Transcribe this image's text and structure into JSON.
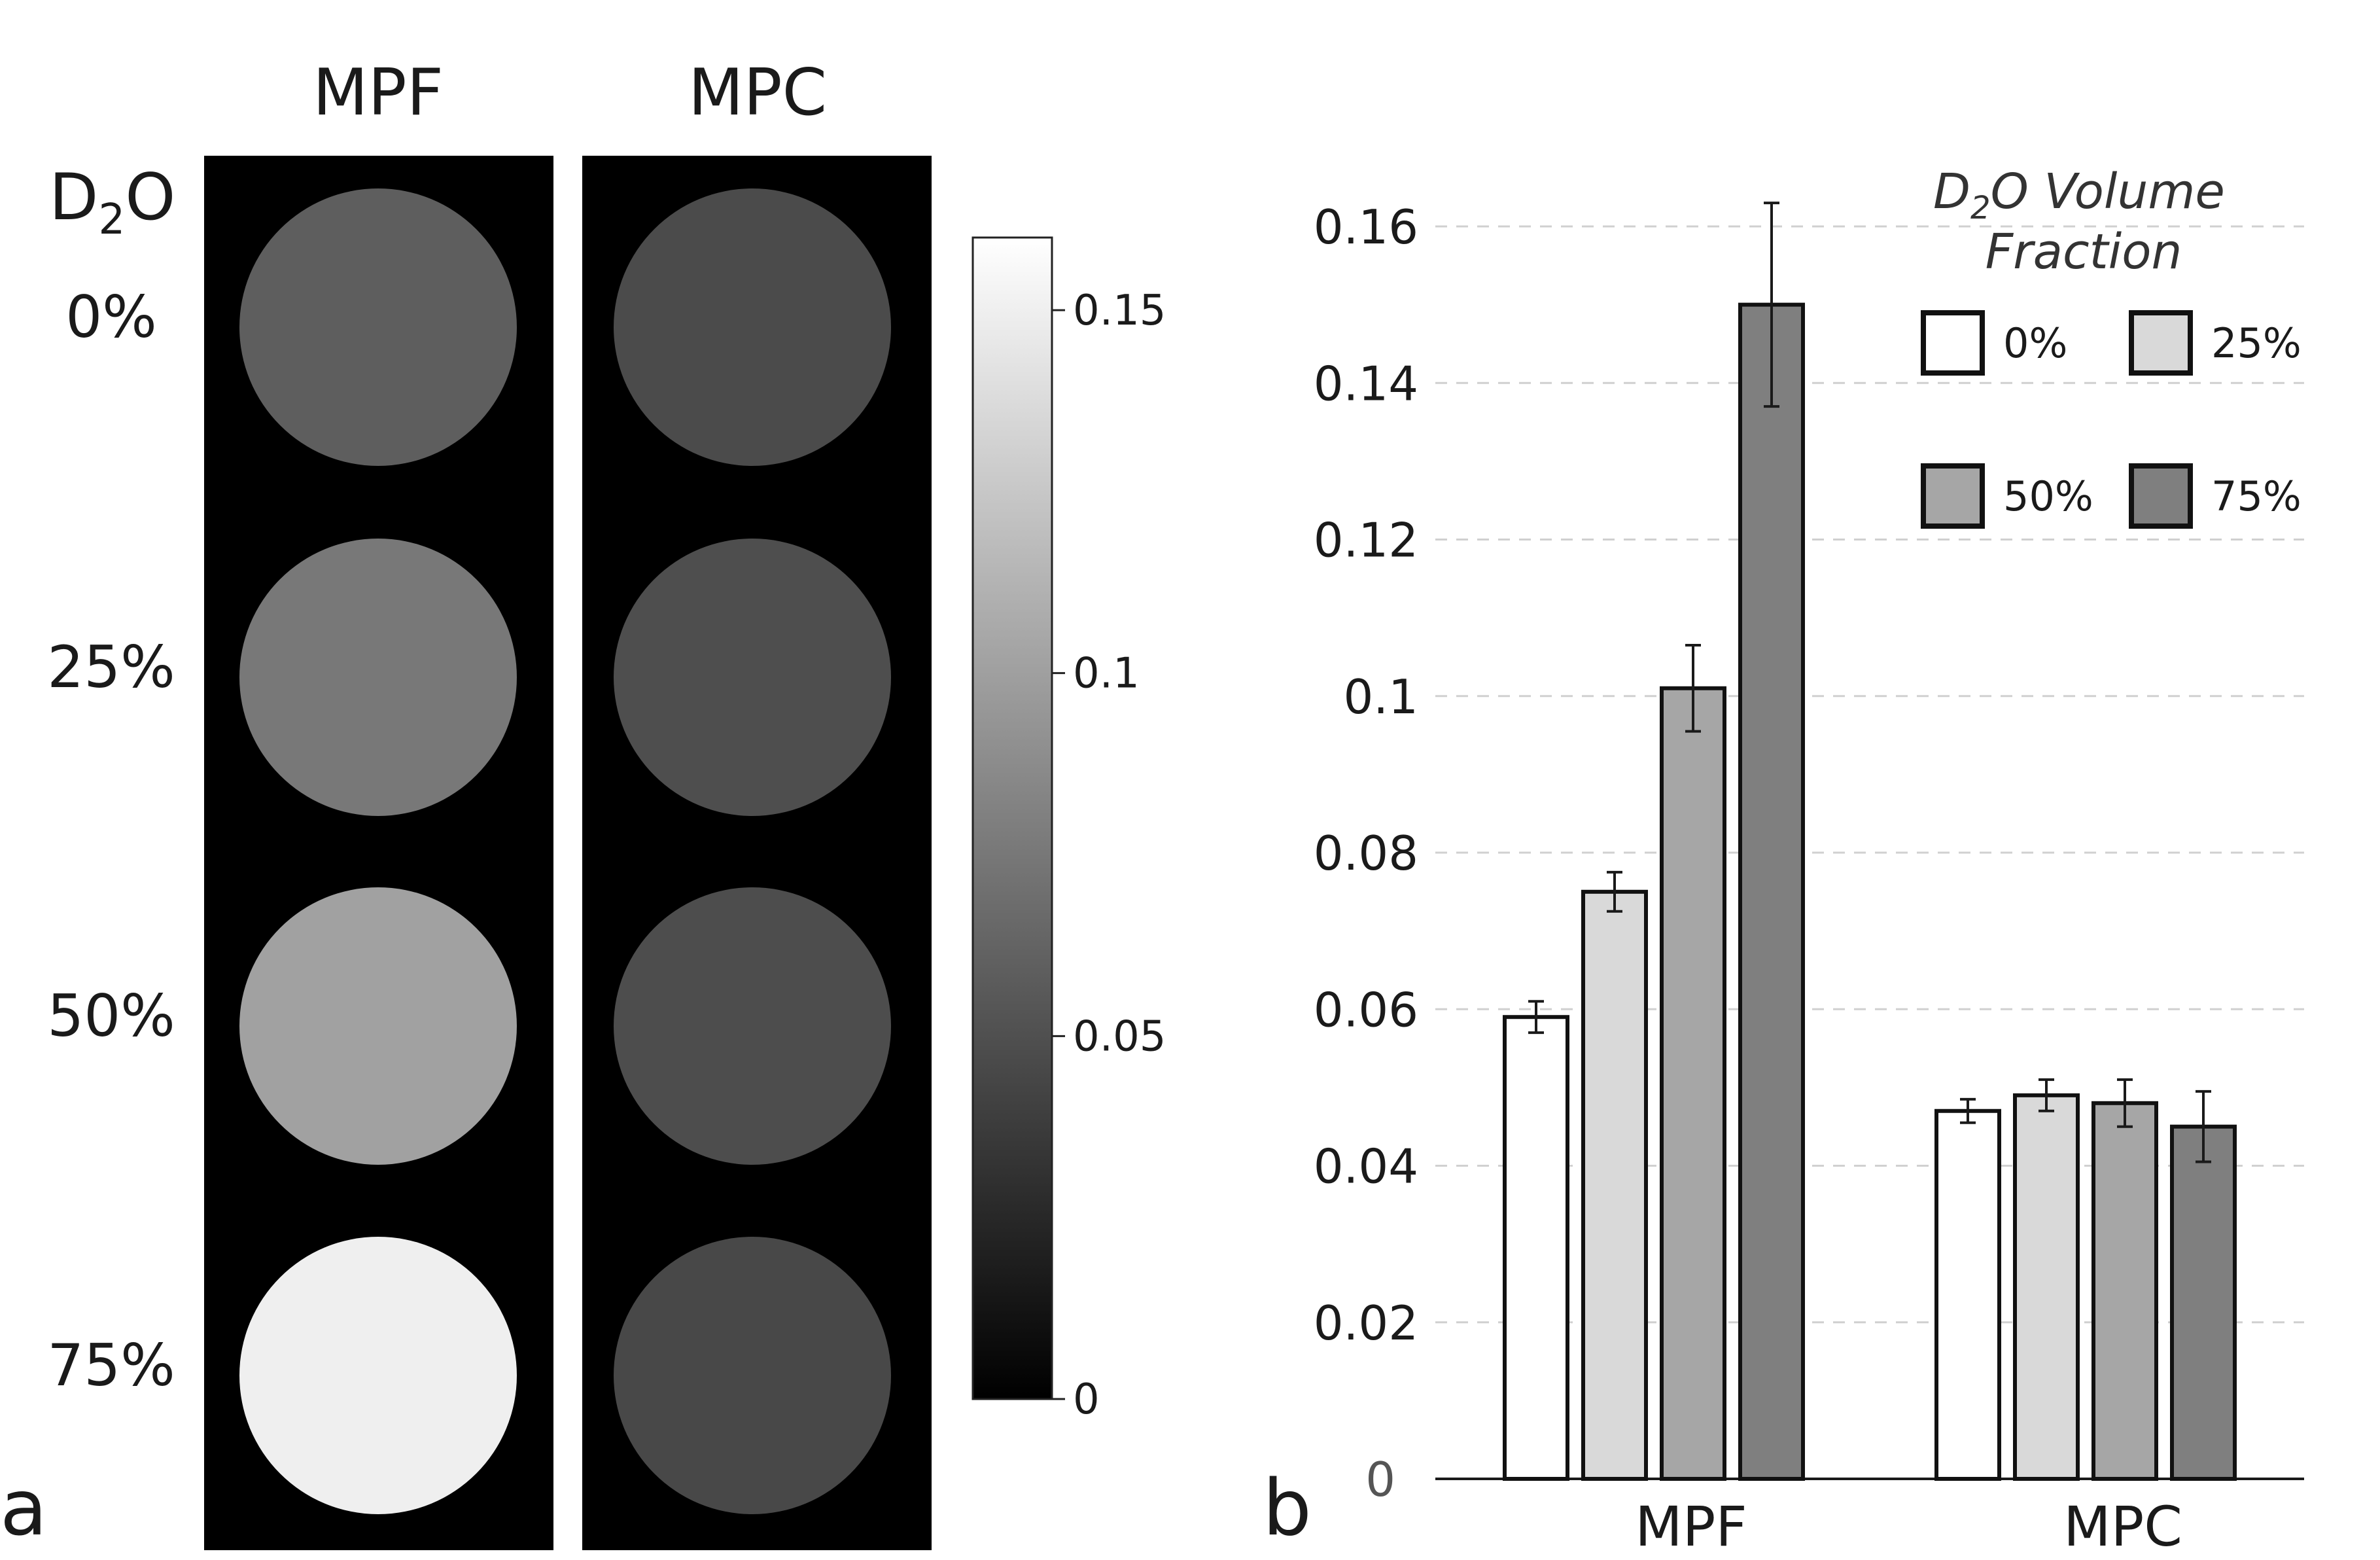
{
  "panel_a": {
    "label": "a",
    "column_headers": [
      "MPF",
      "MPC"
    ],
    "row_header_prefix": "D",
    "row_header_sub": "2",
    "row_header_suffix": "O",
    "row_labels": [
      "0%",
      "25%",
      "50%",
      "75%"
    ],
    "phantom_values": {
      "MPF": [
        0.059,
        0.075,
        0.101,
        0.15
      ],
      "MPC": [
        0.047,
        0.049,
        0.048,
        0.045
      ]
    },
    "colorbar": {
      "min": 0,
      "max": 0.16,
      "tick_values": [
        0,
        0.05,
        0.1,
        0.15
      ],
      "tick_labels": [
        "0",
        "0.05",
        "0.1",
        "0.15"
      ]
    }
  },
  "chart_data": {
    "type": "bar",
    "panel_label": "b",
    "categories": [
      "MPF",
      "MPC"
    ],
    "series": [
      {
        "name": "0%",
        "values": [
          0.059,
          0.047
        ],
        "errors": [
          0.002,
          0.0015
        ],
        "color": "#ffffff"
      },
      {
        "name": "25%",
        "values": [
          0.075,
          0.049
        ],
        "errors": [
          0.0025,
          0.002
        ],
        "color": "#d9d9d9"
      },
      {
        "name": "50%",
        "values": [
          0.101,
          0.048
        ],
        "errors": [
          0.0055,
          0.003
        ],
        "color": "#a6a6a6"
      },
      {
        "name": "75%",
        "values": [
          0.15,
          0.045
        ],
        "errors": [
          0.013,
          0.0045
        ],
        "color": "#7f7f7f"
      }
    ],
    "ylim": [
      0,
      0.16
    ],
    "yticks": [
      0,
      0.02,
      0.04,
      0.06,
      0.08,
      0.1,
      0.12,
      0.14,
      0.16
    ],
    "ytick_labels": [
      "0",
      "0.02",
      "0.04",
      "0.06",
      "0.08",
      "0.1",
      "0.12",
      "0.14",
      "0.16"
    ],
    "grid": "horizontal dashed",
    "legend": {
      "title_prefix": "D",
      "title_sub": "2",
      "title_suffix": "O Volume",
      "title_line2": "Fraction",
      "placement": "top-right"
    },
    "xlabel": "",
    "ylabel": ""
  }
}
